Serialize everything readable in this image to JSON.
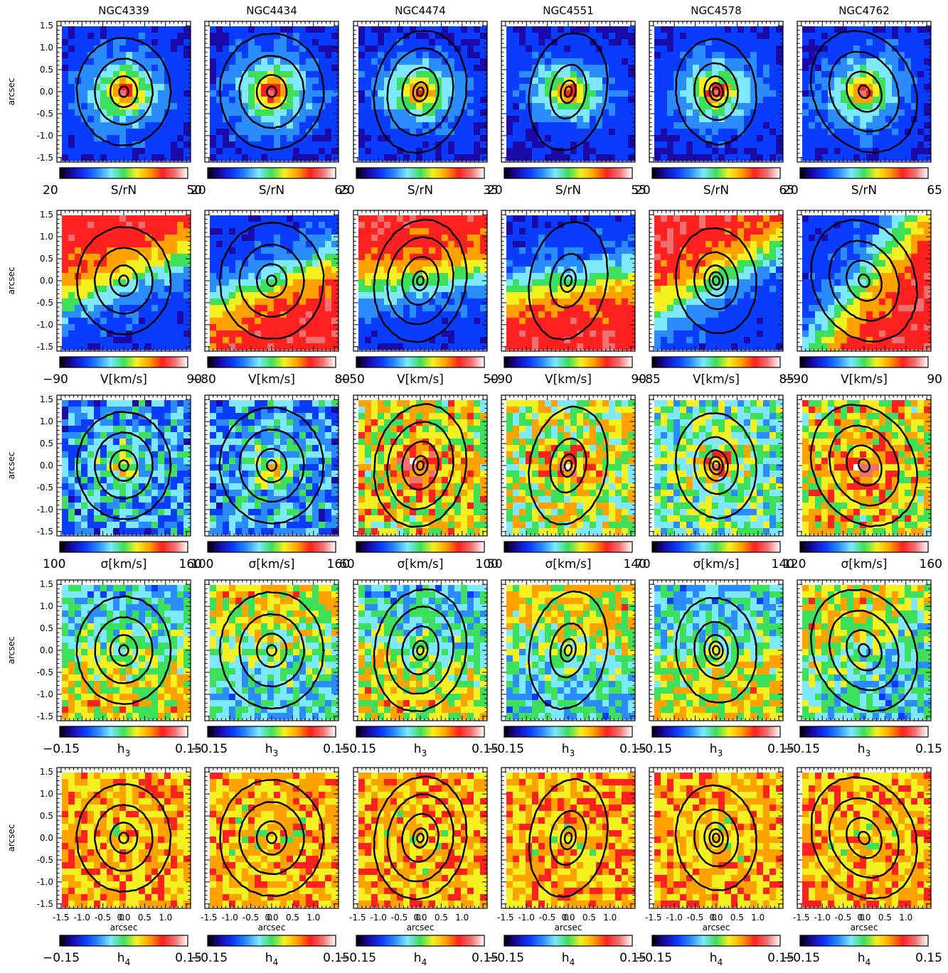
{
  "chart_data": {
    "type": "heatmap",
    "description_visible": "5x6 grid of 2D kinematic maps with isophote contours",
    "galaxies": [
      "NGC4339",
      "NGC4434",
      "NGC4474",
      "NGC4551",
      "NGC4578",
      "NGC4762"
    ],
    "ylabel": "arcsec",
    "xlabel": "arcsec",
    "y_ticks": [
      "1.5",
      "1.0",
      "0.5",
      "0.0",
      "-0.5",
      "-1.0",
      "-1.5"
    ],
    "y_tick_values": [
      1.5,
      1.0,
      0.5,
      0.0,
      -0.5,
      -1.0,
      -1.5
    ],
    "x_ticks": [
      "-1.5",
      "-1.0",
      "-0.5",
      "0",
      "0.0",
      "0.5",
      "1.0"
    ],
    "x_tick_values": [
      -1.5,
      -1.0,
      -0.5,
      -0.05,
      0.0,
      0.5,
      1.0
    ],
    "xlim": [
      -1.6,
      1.6
    ],
    "ylim": [
      -1.6,
      1.6
    ],
    "rows": [
      {
        "quantity": "S/rN",
        "label": "S/rN",
        "ranges": [
          [
            "20",
            "50"
          ],
          [
            "20",
            "65"
          ],
          [
            "20",
            "35"
          ],
          [
            "20",
            "55"
          ],
          [
            "20",
            "65"
          ],
          [
            "20",
            "65"
          ]
        ]
      },
      {
        "quantity": "V",
        "label": "V[km/s]",
        "ranges": [
          [
            "−90",
            "90"
          ],
          [
            "−80",
            "80"
          ],
          [
            "−50",
            "50"
          ],
          [
            "−90",
            "90"
          ],
          [
            "−85",
            "85"
          ],
          [
            "−90",
            "90"
          ]
        ]
      },
      {
        "quantity": "sigma",
        "label": "σ[km/s]",
        "ranges": [
          [
            "100",
            "160"
          ],
          [
            "100",
            "160"
          ],
          [
            "60",
            "100"
          ],
          [
            "50",
            "140"
          ],
          [
            "70",
            "140"
          ],
          [
            "120",
            "160"
          ]
        ]
      },
      {
        "quantity": "h3",
        "label": "h",
        "label_sub": "3",
        "ranges": [
          [
            "−0.15",
            "0.15"
          ],
          [
            "−0.15",
            "0.15"
          ],
          [
            "−0.15",
            "0.15"
          ],
          [
            "−0.15",
            "0.15"
          ],
          [
            "−0.15",
            "0.15"
          ],
          [
            "−0.15",
            "0.15"
          ]
        ]
      },
      {
        "quantity": "h4",
        "label": "h",
        "label_sub": "4",
        "ranges": [
          [
            "−0.15",
            "0.15"
          ],
          [
            "−0.15",
            "0.15"
          ],
          [
            "−0.15",
            "0.15"
          ],
          [
            "−0.15",
            "0.15"
          ],
          [
            "−0.15",
            "0.15"
          ],
          [
            "−0.15",
            "0.15"
          ]
        ]
      }
    ],
    "isophotes": [
      {
        "q": 0.92,
        "pa_deg": 0,
        "radii": [
          0.12,
          0.35,
          0.75,
          1.22
        ]
      },
      {
        "q": 0.94,
        "pa_deg": 0,
        "radii": [
          0.12,
          0.38,
          0.82,
          1.32
        ]
      },
      {
        "q": 0.78,
        "pa_deg": -12,
        "radii": [
          0.1,
          0.22,
          0.55,
          1.0,
          1.4
        ]
      },
      {
        "q": 0.68,
        "pa_deg": -12,
        "radii": [
          0.12,
          0.26,
          0.62,
          1.35
        ]
      },
      {
        "q": 0.8,
        "pa_deg": 8,
        "radii": [
          0.1,
          0.2,
          0.35,
          0.65,
          1.2
        ]
      },
      {
        "q": 0.82,
        "pa_deg": 32,
        "radii": [
          0.15,
          0.48,
          0.95,
          1.45
        ]
      }
    ],
    "colormap": [
      "#000000",
      "#1a0aa8",
      "#0a3cff",
      "#2a8cff",
      "#7ee8ff",
      "#3ce05a",
      "#f5f020",
      "#ffa200",
      "#ff2020",
      "#f07070",
      "#ffffff"
    ],
    "background_colors": {
      "row0": "#2a5cf0",
      "row1": "#7fe0ff",
      "row2": "#2460ff",
      "row3": "#88e4ff",
      "row4": "#f0e030"
    }
  }
}
